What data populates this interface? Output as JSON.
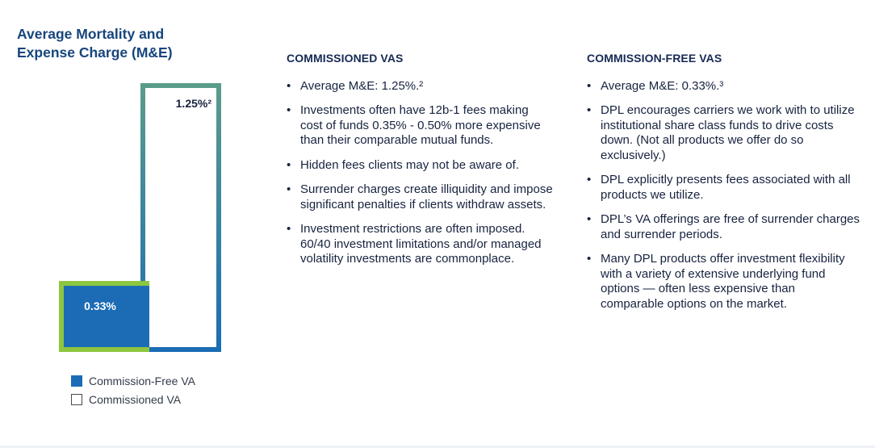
{
  "chart_data": {
    "type": "bar",
    "title": "Average Mortality and Expense Charge (M&E)",
    "title_lines": [
      "Average Mortality and",
      "Expense Charge (M&E)"
    ],
    "categories": [
      "Commission-Free VA",
      "Commissioned VA"
    ],
    "values": [
      0.33,
      1.25
    ],
    "value_labels": [
      "0.33%",
      "1.25%²"
    ],
    "unit": "%",
    "legend": [
      {
        "label": "Commission-Free VA",
        "fill": "#1b6cb5"
      },
      {
        "label": "Commissioned VA",
        "fill": "#ffffff"
      }
    ],
    "legend_position": "bottom-left",
    "grid": false,
    "xlabel": "",
    "ylabel": ""
  },
  "colors": {
    "title": "#17457d",
    "commission_free_fill": "#1b6cb5",
    "commission_free_border": "#8dc63f",
    "commissioned_border_top": "#5b9c8a",
    "commissioned_border_bottom": "#1b6cb5"
  },
  "commissioned": {
    "heading": "COMMISSIONED VAS",
    "items": [
      "Average M&E: 1.25%.²",
      "Investments often have 12b-1 fees making cost of funds 0.35% - 0.50% more expensive than their comparable mutual funds.",
      "Hidden fees clients may not be aware of.",
      "Surrender charges create illiquidity and impose significant penalties if clients withdraw assets.",
      "Investment restrictions are often imposed. 60/40 investment limitations and/or managed volatility investments are commonplace."
    ]
  },
  "commission_free": {
    "heading": "COMMISSION-FREE VAS",
    "items": [
      "Average M&E: 0.33%.³",
      "DPL encourages carriers we work with to utilize institutional share class funds to drive costs down. (Not all products we offer do so exclusively.)",
      "DPL explicitly presents fees associated with all products we utilize.",
      "DPL’s VA offerings are free of surrender charges and surrender periods.",
      "Many DPL products offer investment flexibility with a variety of extensive underlying fund options — often less expensive than comparable options on the market."
    ]
  }
}
